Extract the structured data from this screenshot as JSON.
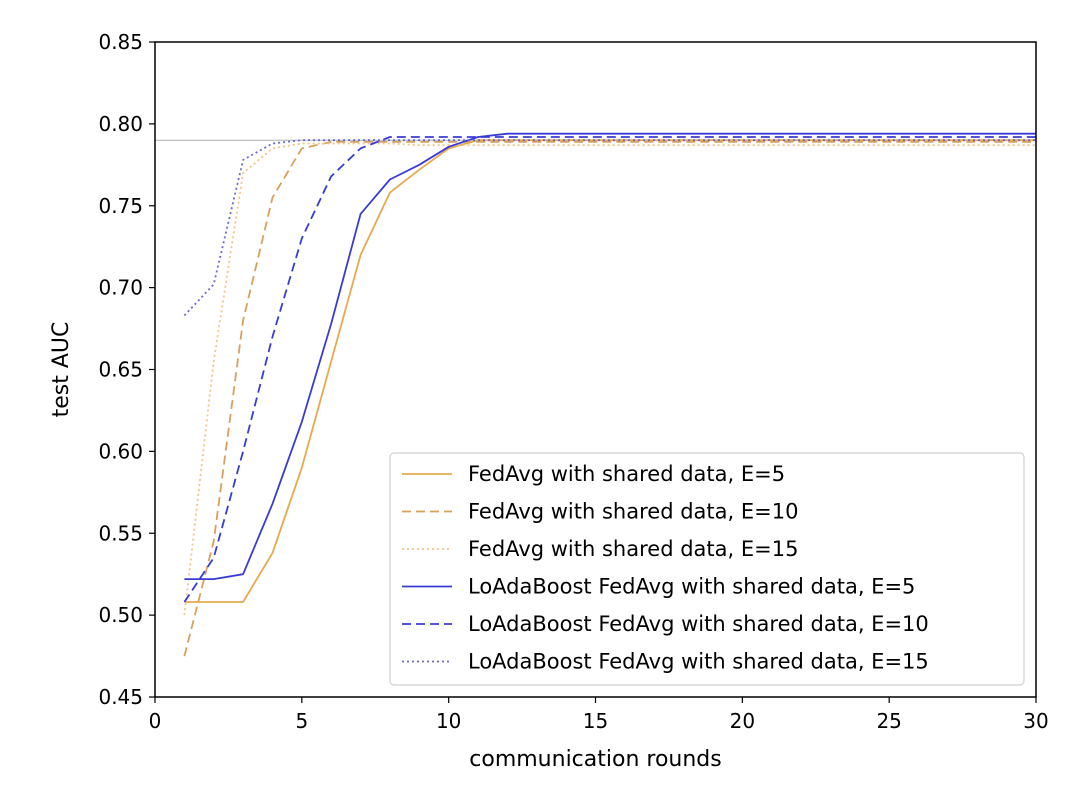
{
  "chart_data": {
    "type": "line",
    "title": "",
    "xlabel": "communication rounds",
    "ylabel": "test AUC",
    "xlim": [
      0,
      30
    ],
    "ylim": [
      0.45,
      0.85
    ],
    "xticks": [
      0,
      5,
      10,
      15,
      20,
      25,
      30
    ],
    "yticks": [
      0.45,
      0.5,
      0.55,
      0.6,
      0.65,
      0.7,
      0.75,
      0.8,
      0.85
    ],
    "xtick_labels": [
      "0",
      "5",
      "10",
      "15",
      "20",
      "25",
      "30"
    ],
    "ytick_labels": [
      "0.45",
      "0.50",
      "0.55",
      "0.60",
      "0.65",
      "0.70",
      "0.75",
      "0.80",
      "0.85"
    ],
    "reference_line": {
      "y": 0.79,
      "color": "#b0b0b0"
    },
    "legend_position": "lower-right",
    "series": [
      {
        "name": "FedAvg with shared data, E=5",
        "color": "#e8a94e",
        "style": "solid",
        "x": [
          1,
          2,
          3,
          4,
          5,
          6,
          7,
          8,
          9,
          10,
          11,
          12,
          13,
          14,
          15,
          16,
          17,
          18,
          19,
          20,
          21,
          22,
          23,
          24,
          25,
          26,
          27,
          28,
          29,
          30
        ],
        "y": [
          0.508,
          0.508,
          0.508,
          0.538,
          0.59,
          0.655,
          0.72,
          0.758,
          0.772,
          0.785,
          0.79,
          0.79,
          0.79,
          0.79,
          0.79,
          0.79,
          0.79,
          0.79,
          0.79,
          0.79,
          0.79,
          0.79,
          0.79,
          0.79,
          0.79,
          0.79,
          0.79,
          0.79,
          0.79,
          0.79
        ]
      },
      {
        "name": "FedAvg with shared data, E=10",
        "color": "#d9a05b",
        "style": "dashed",
        "x": [
          1,
          2,
          3,
          4,
          5,
          6,
          7,
          8,
          9,
          10,
          11,
          12,
          13,
          14,
          15,
          16,
          17,
          18,
          19,
          20,
          21,
          22,
          23,
          24,
          25,
          26,
          27,
          28,
          29,
          30
        ],
        "y": [
          0.475,
          0.545,
          0.68,
          0.755,
          0.785,
          0.789,
          0.789,
          0.789,
          0.789,
          0.789,
          0.789,
          0.789,
          0.789,
          0.789,
          0.789,
          0.789,
          0.789,
          0.789,
          0.789,
          0.789,
          0.789,
          0.789,
          0.789,
          0.789,
          0.789,
          0.789,
          0.789,
          0.789,
          0.789,
          0.789
        ]
      },
      {
        "name": "FedAvg with shared data, E=15",
        "color": "#f0c58a",
        "style": "dotted",
        "x": [
          1,
          2,
          3,
          4,
          5,
          6,
          7,
          8,
          9,
          10,
          11,
          12,
          13,
          14,
          15,
          16,
          17,
          18,
          19,
          20,
          21,
          22,
          23,
          24,
          25,
          26,
          27,
          28,
          29,
          30
        ],
        "y": [
          0.5,
          0.655,
          0.77,
          0.785,
          0.788,
          0.788,
          0.788,
          0.788,
          0.787,
          0.787,
          0.787,
          0.787,
          0.787,
          0.787,
          0.787,
          0.787,
          0.787,
          0.787,
          0.787,
          0.787,
          0.787,
          0.787,
          0.787,
          0.787,
          0.787,
          0.787,
          0.787,
          0.787,
          0.787,
          0.787
        ]
      },
      {
        "name": "LoAdaBoost FedAvg with shared data, E=5",
        "color": "#3a3ad6",
        "style": "solid",
        "x": [
          1,
          2,
          3,
          4,
          5,
          6,
          7,
          8,
          9,
          10,
          11,
          12,
          13,
          14,
          15,
          16,
          17,
          18,
          19,
          20,
          21,
          22,
          23,
          24,
          25,
          26,
          27,
          28,
          29,
          30
        ],
        "y": [
          0.522,
          0.522,
          0.525,
          0.568,
          0.618,
          0.678,
          0.745,
          0.766,
          0.775,
          0.786,
          0.792,
          0.794,
          0.794,
          0.794,
          0.794,
          0.794,
          0.794,
          0.794,
          0.794,
          0.794,
          0.794,
          0.794,
          0.794,
          0.794,
          0.794,
          0.794,
          0.794,
          0.794,
          0.794,
          0.794
        ]
      },
      {
        "name": "LoAdaBoost FedAvg with shared data, E=10",
        "color": "#3a3ad6",
        "style": "dashed",
        "x": [
          1,
          2,
          3,
          4,
          5,
          6,
          7,
          8,
          9,
          10,
          11,
          12,
          13,
          14,
          15,
          16,
          17,
          18,
          19,
          20,
          21,
          22,
          23,
          24,
          25,
          26,
          27,
          28,
          29,
          30
        ],
        "y": [
          0.508,
          0.535,
          0.6,
          0.67,
          0.73,
          0.768,
          0.785,
          0.792,
          0.792,
          0.792,
          0.792,
          0.792,
          0.792,
          0.792,
          0.792,
          0.792,
          0.792,
          0.792,
          0.792,
          0.792,
          0.792,
          0.792,
          0.792,
          0.792,
          0.792,
          0.792,
          0.792,
          0.792,
          0.792,
          0.792
        ]
      },
      {
        "name": "LoAdaBoost FedAvg with shared data, E=15",
        "color": "#6a6ad0",
        "style": "dotted",
        "x": [
          1,
          2,
          3,
          4,
          5,
          6,
          7,
          8,
          9,
          10,
          11,
          12,
          13,
          14,
          15,
          16,
          17,
          18,
          19,
          20,
          21,
          22,
          23,
          24,
          25,
          26,
          27,
          28,
          29,
          30
        ],
        "y": [
          0.683,
          0.702,
          0.778,
          0.788,
          0.79,
          0.79,
          0.79,
          0.79,
          0.79,
          0.79,
          0.79,
          0.79,
          0.79,
          0.79,
          0.79,
          0.79,
          0.79,
          0.79,
          0.79,
          0.79,
          0.79,
          0.79,
          0.79,
          0.79,
          0.79,
          0.79,
          0.79,
          0.79,
          0.79,
          0.79
        ]
      }
    ]
  }
}
